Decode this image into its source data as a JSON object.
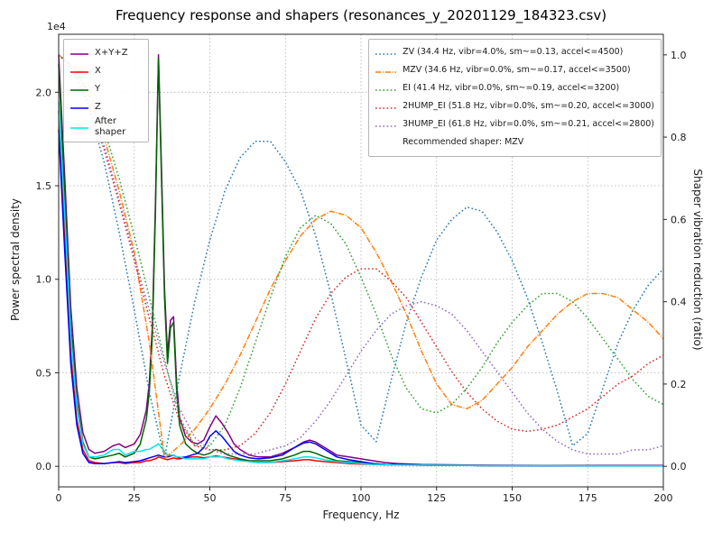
{
  "figure": {
    "title": "Frequency response and shapers (resonances_y_20201129_184323.csv)",
    "background": "#ffffff"
  },
  "axes": {
    "x": {
      "label": "Frequency, Hz",
      "min": 0,
      "max": 200,
      "tick_values": [
        0,
        25,
        50,
        75,
        100,
        125,
        150,
        175,
        200
      ],
      "tick_labels": [
        "0",
        "25",
        "50",
        "75",
        "100",
        "125",
        "150",
        "175",
        "200"
      ]
    },
    "y_left": {
      "label": "Power spectral density",
      "offset_text": "1e4",
      "min": -0.11,
      "max": 2.31,
      "tick_values": [
        0.0,
        0.5,
        1.0,
        1.5,
        2.0
      ],
      "tick_labels": [
        "0.0",
        "0.5",
        "1.0",
        "1.5",
        "2.0"
      ]
    },
    "y_right": {
      "label": "Shaper vibration reduction (ratio)",
      "min": -0.05,
      "max": 1.05,
      "tick_values": [
        0.0,
        0.2,
        0.4,
        0.6,
        0.8,
        1.0
      ],
      "tick_labels": [
        "0.0",
        "0.2",
        "0.4",
        "0.6",
        "0.8",
        "1.0"
      ]
    },
    "grid": true,
    "grid_color": "#b0b0b0"
  },
  "chart_data": {
    "type": "line",
    "title": "Frequency response and shapers (resonances_y_20201129_184323.csv)",
    "xlabel": "Frequency, Hz",
    "ylabel_left": "Power spectral density (1e4)",
    "ylabel_right": "Shaper vibration reduction (ratio)",
    "xlim": [
      0,
      200
    ],
    "ylim_left": [
      0,
      2.2
    ],
    "ylim_right": [
      0,
      1.0
    ],
    "psd": {
      "axis": "left",
      "units_multiplier": "1e4",
      "x": [
        0,
        2,
        4,
        6,
        8,
        10,
        12,
        15,
        18,
        20,
        22,
        25,
        27,
        29,
        30,
        31,
        32,
        33,
        34,
        35,
        36,
        37,
        38,
        39,
        40,
        42,
        44,
        46,
        48,
        50,
        52,
        54,
        56,
        58,
        60,
        63,
        66,
        70,
        74,
        78,
        81,
        83,
        85,
        88,
        92,
        96,
        100,
        104,
        108,
        112,
        120,
        130,
        140,
        160,
        180,
        200
      ],
      "series": [
        {
          "name": "X+Y+Z",
          "color": "#800080",
          "style": "solid",
          "values": [
            2.2,
            1.55,
            0.85,
            0.42,
            0.18,
            0.09,
            0.07,
            0.08,
            0.11,
            0.12,
            0.1,
            0.12,
            0.17,
            0.3,
            0.45,
            0.75,
            1.4,
            2.2,
            1.6,
            0.95,
            0.6,
            0.78,
            0.8,
            0.45,
            0.26,
            0.16,
            0.13,
            0.12,
            0.14,
            0.21,
            0.27,
            0.23,
            0.18,
            0.12,
            0.09,
            0.06,
            0.05,
            0.05,
            0.07,
            0.1,
            0.13,
            0.14,
            0.13,
            0.1,
            0.06,
            0.05,
            0.04,
            0.03,
            0.02,
            0.015,
            0.01,
            0.008,
            0.006,
            0.005,
            0.005,
            0.005
          ]
        },
        {
          "name": "X",
          "color": "#ff0000",
          "style": "solid",
          "values": [
            1.9,
            1.25,
            0.6,
            0.25,
            0.09,
            0.03,
            0.02,
            0.015,
            0.02,
            0.02,
            0.015,
            0.02,
            0.02,
            0.03,
            0.03,
            0.035,
            0.04,
            0.05,
            0.045,
            0.04,
            0.035,
            0.04,
            0.045,
            0.04,
            0.04,
            0.045,
            0.05,
            0.05,
            0.045,
            0.05,
            0.055,
            0.05,
            0.045,
            0.04,
            0.035,
            0.025,
            0.02,
            0.02,
            0.025,
            0.03,
            0.035,
            0.035,
            0.03,
            0.025,
            0.02,
            0.015,
            0.012,
            0.01,
            0.008,
            0.007,
            0.006,
            0.005,
            0.004,
            0.004,
            0.003,
            0.003
          ]
        },
        {
          "name": "Y",
          "color": "#006400",
          "style": "solid",
          "values": [
            2.15,
            1.45,
            0.75,
            0.35,
            0.13,
            0.05,
            0.04,
            0.05,
            0.06,
            0.07,
            0.05,
            0.07,
            0.12,
            0.25,
            0.4,
            0.7,
            1.35,
            2.18,
            1.55,
            0.9,
            0.55,
            0.74,
            0.77,
            0.4,
            0.22,
            0.12,
            0.09,
            0.07,
            0.06,
            0.07,
            0.09,
            0.08,
            0.06,
            0.05,
            0.04,
            0.03,
            0.03,
            0.03,
            0.04,
            0.06,
            0.08,
            0.08,
            0.07,
            0.05,
            0.03,
            0.025,
            0.02,
            0.015,
            0.01,
            0.008,
            0.006,
            0.005,
            0.004,
            0.004,
            0.003,
            0.003
          ]
        },
        {
          "name": "Z",
          "color": "#0000ff",
          "style": "solid",
          "values": [
            1.8,
            1.15,
            0.55,
            0.22,
            0.07,
            0.02,
            0.015,
            0.015,
            0.02,
            0.025,
            0.02,
            0.025,
            0.03,
            0.04,
            0.045,
            0.05,
            0.055,
            0.06,
            0.055,
            0.05,
            0.05,
            0.055,
            0.06,
            0.05,
            0.045,
            0.05,
            0.06,
            0.07,
            0.1,
            0.16,
            0.19,
            0.16,
            0.12,
            0.08,
            0.06,
            0.045,
            0.04,
            0.045,
            0.06,
            0.1,
            0.125,
            0.13,
            0.12,
            0.09,
            0.05,
            0.035,
            0.025,
            0.015,
            0.01,
            0.008,
            0.006,
            0.005,
            0.004,
            0.003,
            0.003,
            0.003
          ]
        },
        {
          "name": "After shaper",
          "color": "#00e5ee",
          "style": "solid",
          "values": [
            1.95,
            1.35,
            0.7,
            0.32,
            0.12,
            0.05,
            0.05,
            0.06,
            0.09,
            0.09,
            0.06,
            0.08,
            0.08,
            0.09,
            0.09,
            0.1,
            0.11,
            0.12,
            0.1,
            0.08,
            0.06,
            0.06,
            0.06,
            0.05,
            0.05,
            0.04,
            0.04,
            0.04,
            0.04,
            0.05,
            0.05,
            0.05,
            0.04,
            0.035,
            0.03,
            0.025,
            0.02,
            0.02,
            0.03,
            0.04,
            0.05,
            0.05,
            0.045,
            0.035,
            0.025,
            0.02,
            0.015,
            0.01,
            0.008,
            0.007,
            0.006,
            0.005,
            0.004,
            0.004,
            0.003,
            0.003
          ]
        }
      ]
    },
    "shapers": {
      "axis": "right",
      "x": [
        0,
        5,
        10,
        15,
        20,
        25,
        30,
        35,
        40,
        45,
        50,
        55,
        60,
        65,
        70,
        75,
        80,
        85,
        90,
        95,
        100,
        105,
        110,
        115,
        120,
        125,
        130,
        135,
        140,
        145,
        150,
        155,
        160,
        165,
        170,
        175,
        180,
        185,
        190,
        195,
        200
      ],
      "series": [
        {
          "name": "ZV",
          "label": "ZV (34.4 Hz, vibr=4.0%, sm~=0.13, accel<=4500)",
          "color": "#1f77b4",
          "style": "dotted",
          "values": [
            1.0,
            0.96,
            0.87,
            0.74,
            0.57,
            0.38,
            0.18,
            0.02,
            0.22,
            0.4,
            0.55,
            0.67,
            0.75,
            0.79,
            0.79,
            0.74,
            0.67,
            0.56,
            0.42,
            0.26,
            0.1,
            0.06,
            0.21,
            0.35,
            0.46,
            0.55,
            0.6,
            0.63,
            0.62,
            0.57,
            0.5,
            0.41,
            0.3,
            0.18,
            0.05,
            0.08,
            0.19,
            0.3,
            0.38,
            0.44,
            0.48
          ]
        },
        {
          "name": "MZV",
          "label": "MZV (34.6 Hz, vibr=0.0%, sm~=0.17, accel<=3500)",
          "color": "#ff7f0e",
          "style": "dashdot",
          "values": [
            1.0,
            0.97,
            0.9,
            0.8,
            0.67,
            0.52,
            0.3,
            0.02,
            0.05,
            0.09,
            0.14,
            0.2,
            0.27,
            0.35,
            0.43,
            0.5,
            0.56,
            0.6,
            0.62,
            0.61,
            0.58,
            0.52,
            0.45,
            0.37,
            0.28,
            0.2,
            0.15,
            0.14,
            0.16,
            0.2,
            0.24,
            0.29,
            0.33,
            0.37,
            0.4,
            0.42,
            0.42,
            0.41,
            0.38,
            0.35,
            0.31
          ]
        },
        {
          "name": "EI",
          "label": "EI (41.4 Hz, vibr=0.0%, sm~=0.19, accel<=3200)",
          "color": "#2ca02c",
          "style": "dotted",
          "values": [
            1.0,
            0.97,
            0.91,
            0.82,
            0.7,
            0.56,
            0.41,
            0.26,
            0.12,
            0.05,
            0.05,
            0.1,
            0.19,
            0.3,
            0.41,
            0.51,
            0.58,
            0.61,
            0.59,
            0.54,
            0.46,
            0.37,
            0.27,
            0.19,
            0.14,
            0.13,
            0.15,
            0.19,
            0.24,
            0.3,
            0.35,
            0.39,
            0.42,
            0.42,
            0.4,
            0.36,
            0.31,
            0.26,
            0.21,
            0.17,
            0.15
          ]
        },
        {
          "name": "2HUMP_EI",
          "label": "2HUMP_EI (51.8 Hz, vibr=0.0%, sm~=0.20, accel<=3000)",
          "color": "#d62728",
          "style": "dotted",
          "values": [
            1.0,
            0.96,
            0.88,
            0.77,
            0.64,
            0.5,
            0.36,
            0.22,
            0.11,
            0.05,
            0.04,
            0.04,
            0.05,
            0.08,
            0.13,
            0.2,
            0.28,
            0.36,
            0.42,
            0.46,
            0.48,
            0.48,
            0.45,
            0.41,
            0.35,
            0.29,
            0.23,
            0.18,
            0.14,
            0.11,
            0.09,
            0.085,
            0.09,
            0.1,
            0.12,
            0.14,
            0.17,
            0.2,
            0.22,
            0.25,
            0.27
          ]
        },
        {
          "name": "3HUMP_EI",
          "label": "3HUMP_EI (61.8 Hz, vibr=0.0%, sm~=0.21, accel<=2800)",
          "color": "#9467bd",
          "style": "dotted",
          "values": [
            1.0,
            0.96,
            0.88,
            0.78,
            0.65,
            0.51,
            0.38,
            0.25,
            0.14,
            0.07,
            0.04,
            0.03,
            0.03,
            0.03,
            0.04,
            0.05,
            0.07,
            0.11,
            0.16,
            0.22,
            0.28,
            0.33,
            0.37,
            0.39,
            0.4,
            0.39,
            0.37,
            0.33,
            0.28,
            0.23,
            0.18,
            0.13,
            0.09,
            0.06,
            0.04,
            0.03,
            0.03,
            0.03,
            0.04,
            0.04,
            0.05
          ]
        }
      ],
      "recommended_label": "Recommended shaper: MZV"
    }
  }
}
